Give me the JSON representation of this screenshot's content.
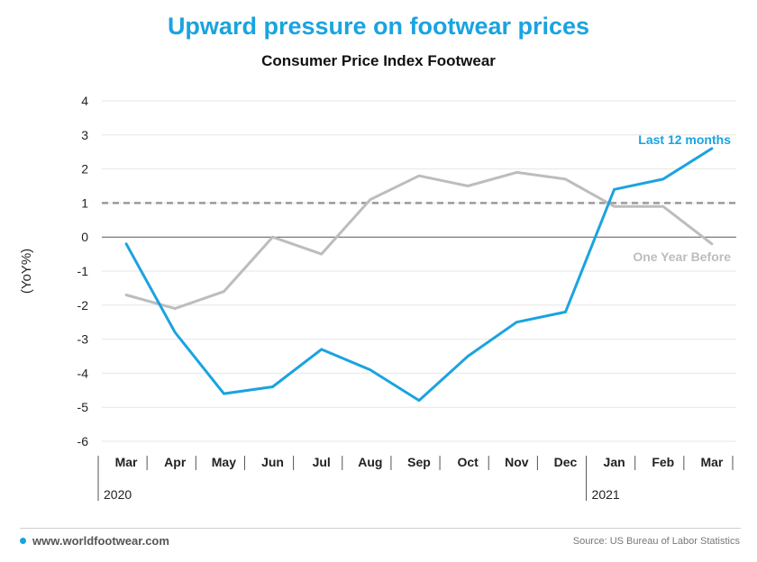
{
  "title": "Upward pressure on footwear prices",
  "subtitle": "Consumer Price Index Footwear",
  "footer": {
    "site": "www.worldfootwear.com",
    "source": "Source: US Bureau of Labor Statistics"
  },
  "colors": {
    "accent": "#1aa3e0",
    "secondary": "#bdbdbd",
    "reference": "#9a9a9a"
  },
  "chart_data": {
    "type": "line",
    "title": "Upward pressure on footwear prices",
    "subtitle": "Consumer Price Index Footwear",
    "ylabel": "(YoY%)",
    "ylim": [
      -6,
      4
    ],
    "yticks": [
      4,
      3,
      2,
      1,
      0,
      -1,
      -2,
      -3,
      -4,
      -5,
      -6
    ],
    "categories": [
      "Mar",
      "Apr",
      "May",
      "Jun",
      "Jul",
      "Aug",
      "Sep",
      "Oct",
      "Nov",
      "Dec",
      "Jan",
      "Feb",
      "Mar"
    ],
    "year_labels": [
      {
        "label": "2020",
        "start_index": 0
      },
      {
        "label": "2021",
        "start_index": 10
      }
    ],
    "reference_line": 1,
    "grid": true,
    "series": [
      {
        "name": "Last 12 months",
        "color": "#1aa3e0",
        "values": [
          -0.2,
          -2.8,
          -4.6,
          -4.4,
          -3.3,
          -3.9,
          -4.8,
          -3.5,
          -2.5,
          -2.2,
          1.4,
          1.7,
          2.6
        ]
      },
      {
        "name": "One Year Before",
        "color": "#bdbdbd",
        "values": [
          -1.7,
          -2.1,
          -1.6,
          0.0,
          -0.5,
          1.1,
          1.8,
          1.5,
          1.9,
          1.7,
          0.9,
          0.9,
          -0.2
        ]
      }
    ]
  }
}
